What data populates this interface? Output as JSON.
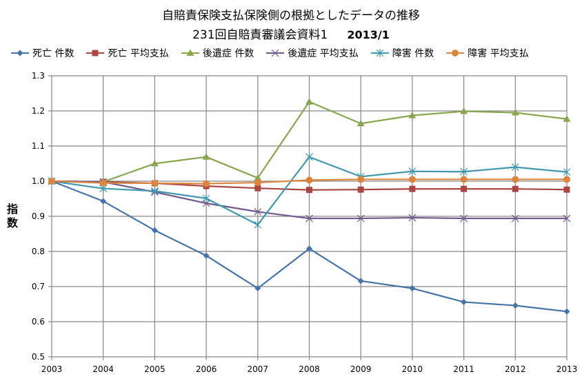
{
  "chart_data": {
    "type": "line",
    "title": "自賠責保険支払保険側の根拠としたデータの推移",
    "subtitle": "231回自賠責審議会資料1",
    "subtitle_date": "2013/1",
    "xlabel": "",
    "ylabel": "指数",
    "x": [
      2003,
      2004,
      2005,
      2006,
      2007,
      2008,
      2009,
      2010,
      2011,
      2012,
      2013
    ],
    "ylim": [
      0.5,
      1.3
    ],
    "yticks": [
      "0.5",
      "0.6",
      "0.7",
      "0.8",
      "0.9",
      "1.0",
      "1.1",
      "1.2",
      "1.3"
    ],
    "grid": true,
    "legend_position": "top",
    "series": [
      {
        "name": "死亡 件数",
        "color": "#4572A7",
        "marker": "diamond",
        "values": [
          1.0,
          0.943,
          0.86,
          0.788,
          0.695,
          0.808,
          0.716,
          0.695,
          0.656,
          0.646,
          0.629
        ]
      },
      {
        "name": "死亡 平均支払",
        "color": "#AA4643",
        "marker": "square",
        "values": [
          1.0,
          0.998,
          0.994,
          0.986,
          0.98,
          0.975,
          0.976,
          0.978,
          0.978,
          0.978,
          0.976
        ]
      },
      {
        "name": "後遺症 件数",
        "color": "#89A54E",
        "marker": "triangle",
        "values": [
          1.0,
          0.998,
          1.05,
          1.069,
          1.009,
          1.226,
          1.164,
          1.187,
          1.199,
          1.195,
          1.177
        ]
      },
      {
        "name": "後遺症 平均支払",
        "color": "#71588F",
        "marker": "x",
        "values": [
          1.0,
          0.998,
          0.969,
          0.937,
          0.913,
          0.894,
          0.894,
          0.896,
          0.894,
          0.894,
          0.894
        ]
      },
      {
        "name": "障害 件数",
        "color": "#4198AF",
        "marker": "star",
        "values": [
          1.0,
          0.979,
          0.972,
          0.951,
          0.876,
          1.069,
          1.013,
          1.028,
          1.027,
          1.04,
          1.026
        ]
      },
      {
        "name": "障害 平均支払",
        "color": "#DB843D",
        "marker": "circle",
        "values": [
          1.0,
          0.995,
          0.994,
          0.993,
          0.996,
          1.003,
          1.005,
          1.005,
          1.005,
          1.005,
          1.005
        ]
      }
    ]
  }
}
